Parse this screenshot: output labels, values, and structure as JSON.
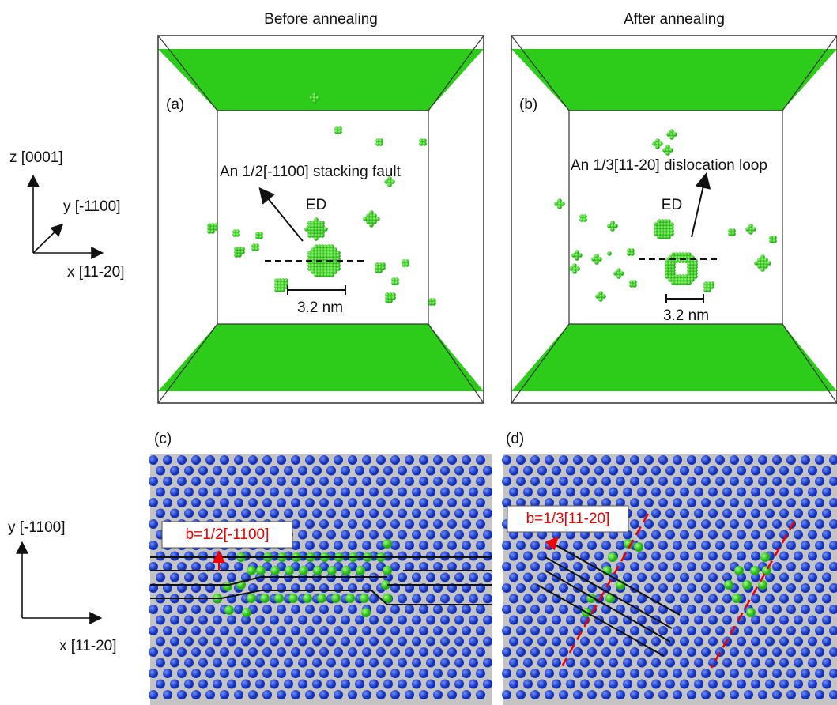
{
  "panels": [
    {
      "title": "Before annealing",
      "label": "(a)",
      "annotation": "An 1/2[-1100] stacking fault",
      "defect": "ED",
      "scale": "3.2 nm"
    },
    {
      "title": "After annealing",
      "label": "(b)",
      "annotation": "An 1/3[11-20] dislocation loop",
      "defect": "ED",
      "scale": "3.2 nm"
    }
  ],
  "lattice_panels": [
    {
      "label": "(c)",
      "burgers": "b=1/2[-1100]"
    },
    {
      "label": "(d)",
      "burgers": "b=1/3[11-20]"
    }
  ],
  "axes_top": {
    "z": "z [0001]",
    "y": "y [-1100]",
    "x": "x [11-20]"
  },
  "axes_bottom": {
    "y": "y [-1100]",
    "x": "x [11-20]"
  }
}
